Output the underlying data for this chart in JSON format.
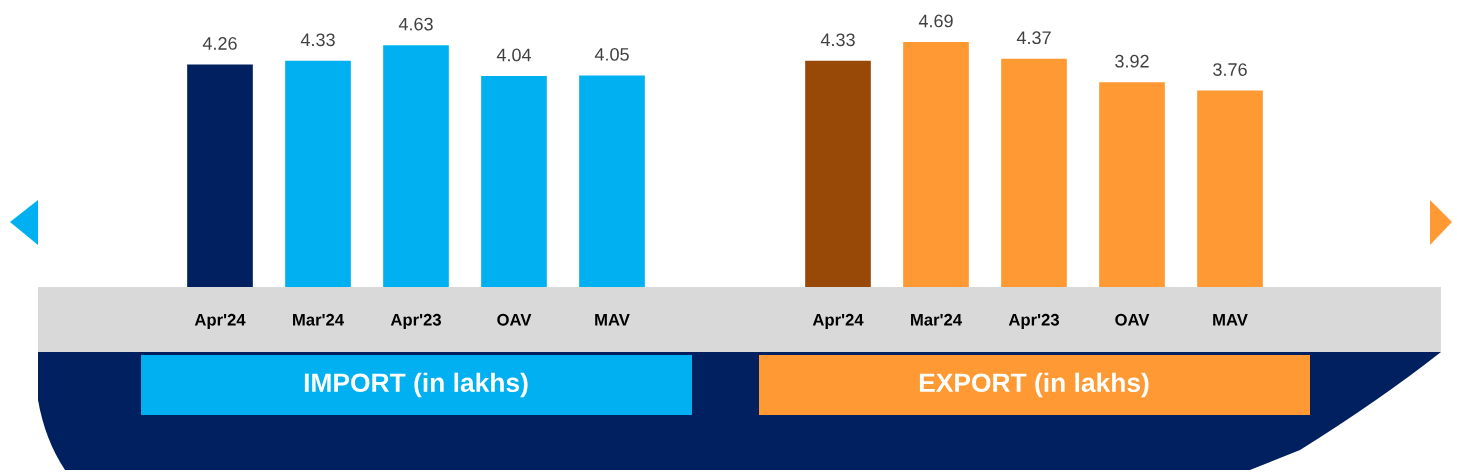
{
  "chart_data": [
    {
      "type": "bar",
      "xlabel": "IMPORT (in lakhs)",
      "categories": [
        "Apr'24",
        "Mar'24",
        "Apr'23",
        "OAV",
        "MAV"
      ],
      "values": [
        4.26,
        4.33,
        4.63,
        4.04,
        4.05
      ],
      "colors": [
        "#002060",
        "#00b0f0",
        "#00b0f0",
        "#00b0f0",
        "#00b0f0"
      ],
      "data_labels": true
    },
    {
      "type": "bar",
      "xlabel": "EXPORT (in lakhs)",
      "categories": [
        "Apr'24",
        "Mar'24",
        "Apr'23",
        "OAV",
        "MAV"
      ],
      "values": [
        4.33,
        4.69,
        4.37,
        3.92,
        3.76
      ],
      "colors": [
        "#984807",
        "#ff9933",
        "#ff9933",
        "#ff9933",
        "#ff9933"
      ],
      "data_labels": true
    }
  ]
}
